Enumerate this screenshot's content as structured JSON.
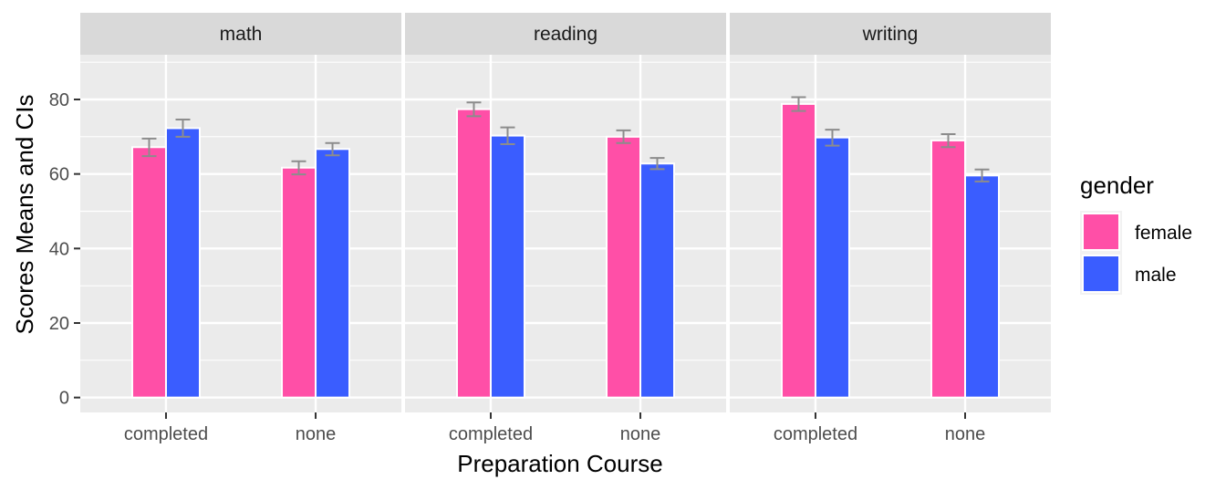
{
  "chart_data": {
    "type": "bar",
    "facet_by": "subject",
    "panels": [
      {
        "name": "math",
        "categories": [
          "completed",
          "none"
        ],
        "series": [
          {
            "name": "female",
            "values": [
              67.2,
              61.7
            ],
            "ci_low": [
              64.8,
              59.9
            ],
            "ci_high": [
              69.5,
              63.4
            ]
          },
          {
            "name": "male",
            "values": [
              72.3,
              66.7
            ],
            "ci_low": [
              70.0,
              65.0
            ],
            "ci_high": [
              74.6,
              68.3
            ]
          }
        ]
      },
      {
        "name": "reading",
        "categories": [
          "completed",
          "none"
        ],
        "series": [
          {
            "name": "female",
            "values": [
              77.4,
              70.0
            ],
            "ci_low": [
              75.5,
              68.3
            ],
            "ci_high": [
              79.2,
              71.7
            ]
          },
          {
            "name": "male",
            "values": [
              70.3,
              62.8
            ],
            "ci_low": [
              68.0,
              61.3
            ],
            "ci_high": [
              72.5,
              64.3
            ]
          }
        ]
      },
      {
        "name": "writing",
        "categories": [
          "completed",
          "none"
        ],
        "series": [
          {
            "name": "female",
            "values": [
              78.8,
              69.0
            ],
            "ci_low": [
              76.9,
              67.2
            ],
            "ci_high": [
              80.6,
              70.7
            ]
          },
          {
            "name": "male",
            "values": [
              69.8,
              59.6
            ],
            "ci_low": [
              67.6,
              58.0
            ],
            "ci_high": [
              71.9,
              61.2
            ]
          }
        ]
      }
    ],
    "xlabel": "Preparation Course",
    "ylabel": "Scores Means and CIs",
    "ylim": [
      -4,
      92
    ],
    "yticks": [
      0,
      20,
      40,
      60,
      80
    ],
    "legend": {
      "title": "gender",
      "position": "right",
      "entries": [
        {
          "label": "female",
          "color": "#FF4FA7"
        },
        {
          "label": "male",
          "color": "#3A5DFF"
        }
      ]
    },
    "grid": true,
    "error_bar_color": "#8c8c8c",
    "panel_background": "#EBEBEB",
    "strip_background": "#D9D9D9"
  }
}
